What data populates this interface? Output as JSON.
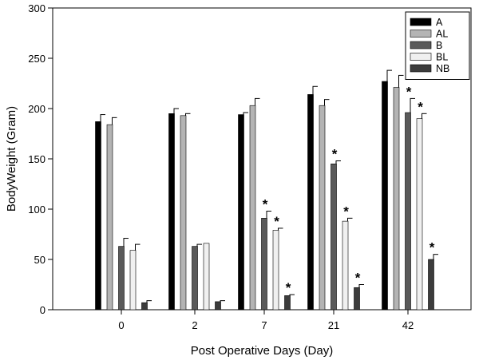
{
  "chart_data": {
    "type": "bar",
    "xlabel": "Post Operative Days (Day)",
    "ylabel": "BodyWeight (Gram)",
    "ylim": [
      0,
      300
    ],
    "yticks": [
      0,
      50,
      100,
      150,
      200,
      250,
      300
    ],
    "categories": [
      "0",
      "2",
      "7",
      "21",
      "42"
    ],
    "grid": false,
    "legend_position": "top-right",
    "series": [
      {
        "name": "A",
        "color": "#000000",
        "values": [
          187,
          195,
          194,
          214,
          227
        ],
        "errors": [
          7,
          5,
          2,
          8,
          11
        ],
        "significant": [
          false,
          false,
          false,
          false,
          false
        ]
      },
      {
        "name": "AL",
        "color": "#b4b4b4",
        "values": [
          184,
          193,
          203,
          203,
          221
        ],
        "errors": [
          7,
          2,
          7,
          6,
          12
        ],
        "significant": [
          false,
          false,
          false,
          false,
          false
        ]
      },
      {
        "name": "B",
        "color": "#5a5a5a",
        "values": [
          63,
          63,
          91,
          145,
          196
        ],
        "errors": [
          8,
          2,
          7,
          3,
          14
        ],
        "significant": [
          false,
          false,
          true,
          true,
          true
        ]
      },
      {
        "name": "BL",
        "color": "#f0f0f0",
        "values": [
          59,
          66,
          79,
          88,
          190
        ],
        "errors": [
          6,
          0,
          2,
          3,
          5
        ],
        "significant": [
          false,
          false,
          true,
          true,
          true
        ]
      },
      {
        "name": "NB",
        "color": "#3c3c3c",
        "values": [
          7,
          8,
          14,
          22,
          50
        ],
        "errors": [
          2,
          1,
          1,
          3,
          5
        ],
        "significant": [
          false,
          false,
          true,
          true,
          true
        ]
      }
    ],
    "significance_marker": "*"
  }
}
